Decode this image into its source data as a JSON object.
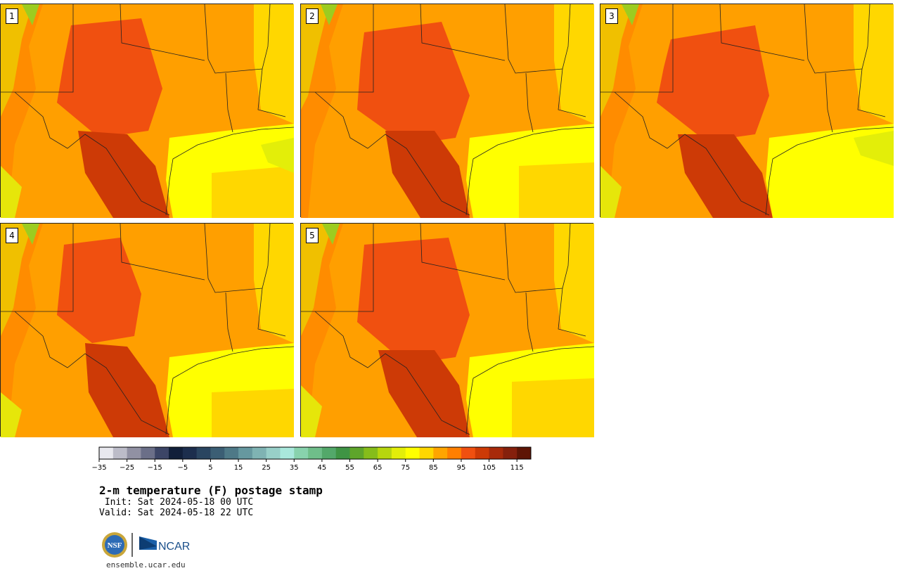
{
  "panels": [
    {
      "member": "1"
    },
    {
      "member": "2"
    },
    {
      "member": "3"
    },
    {
      "member": "4"
    },
    {
      "member": "5"
    }
  ],
  "colorbar": {
    "colors": [
      "#e8e8ee",
      "#bcbcc8",
      "#9191a3",
      "#6b6f88",
      "#3c4566",
      "#111f3a",
      "#1c2e4d",
      "#2a4560",
      "#3b5e74",
      "#4e7987",
      "#66989f",
      "#7fb3b3",
      "#98cfc8",
      "#a9e8dc",
      "#88d2ad",
      "#6fbe8a",
      "#53a86a",
      "#3f9444",
      "#5ea52a",
      "#86bd1a",
      "#b7d60e",
      "#e3ee09",
      "#ffff00",
      "#ffd700",
      "#ffa500",
      "#ff7f00",
      "#f05010",
      "#cd3a06",
      "#a82a0a",
      "#85200c",
      "#5e1505"
    ],
    "tick_labels": [
      "−35",
      "−25",
      "−15",
      "−5",
      "5",
      "15",
      "25",
      "35",
      "45",
      "55",
      "65",
      "75",
      "85",
      "95",
      "105",
      "115"
    ]
  },
  "title": "2-m temperature (F) postage stamp",
  "init_line": " Init: Sat 2024-05-18 00 UTC",
  "valid_line": "Valid: Sat 2024-05-18 22 UTC",
  "logos": {
    "nsf": "NSF",
    "ncar": "NCAR"
  },
  "url": "ensemble.ucar.edu"
}
